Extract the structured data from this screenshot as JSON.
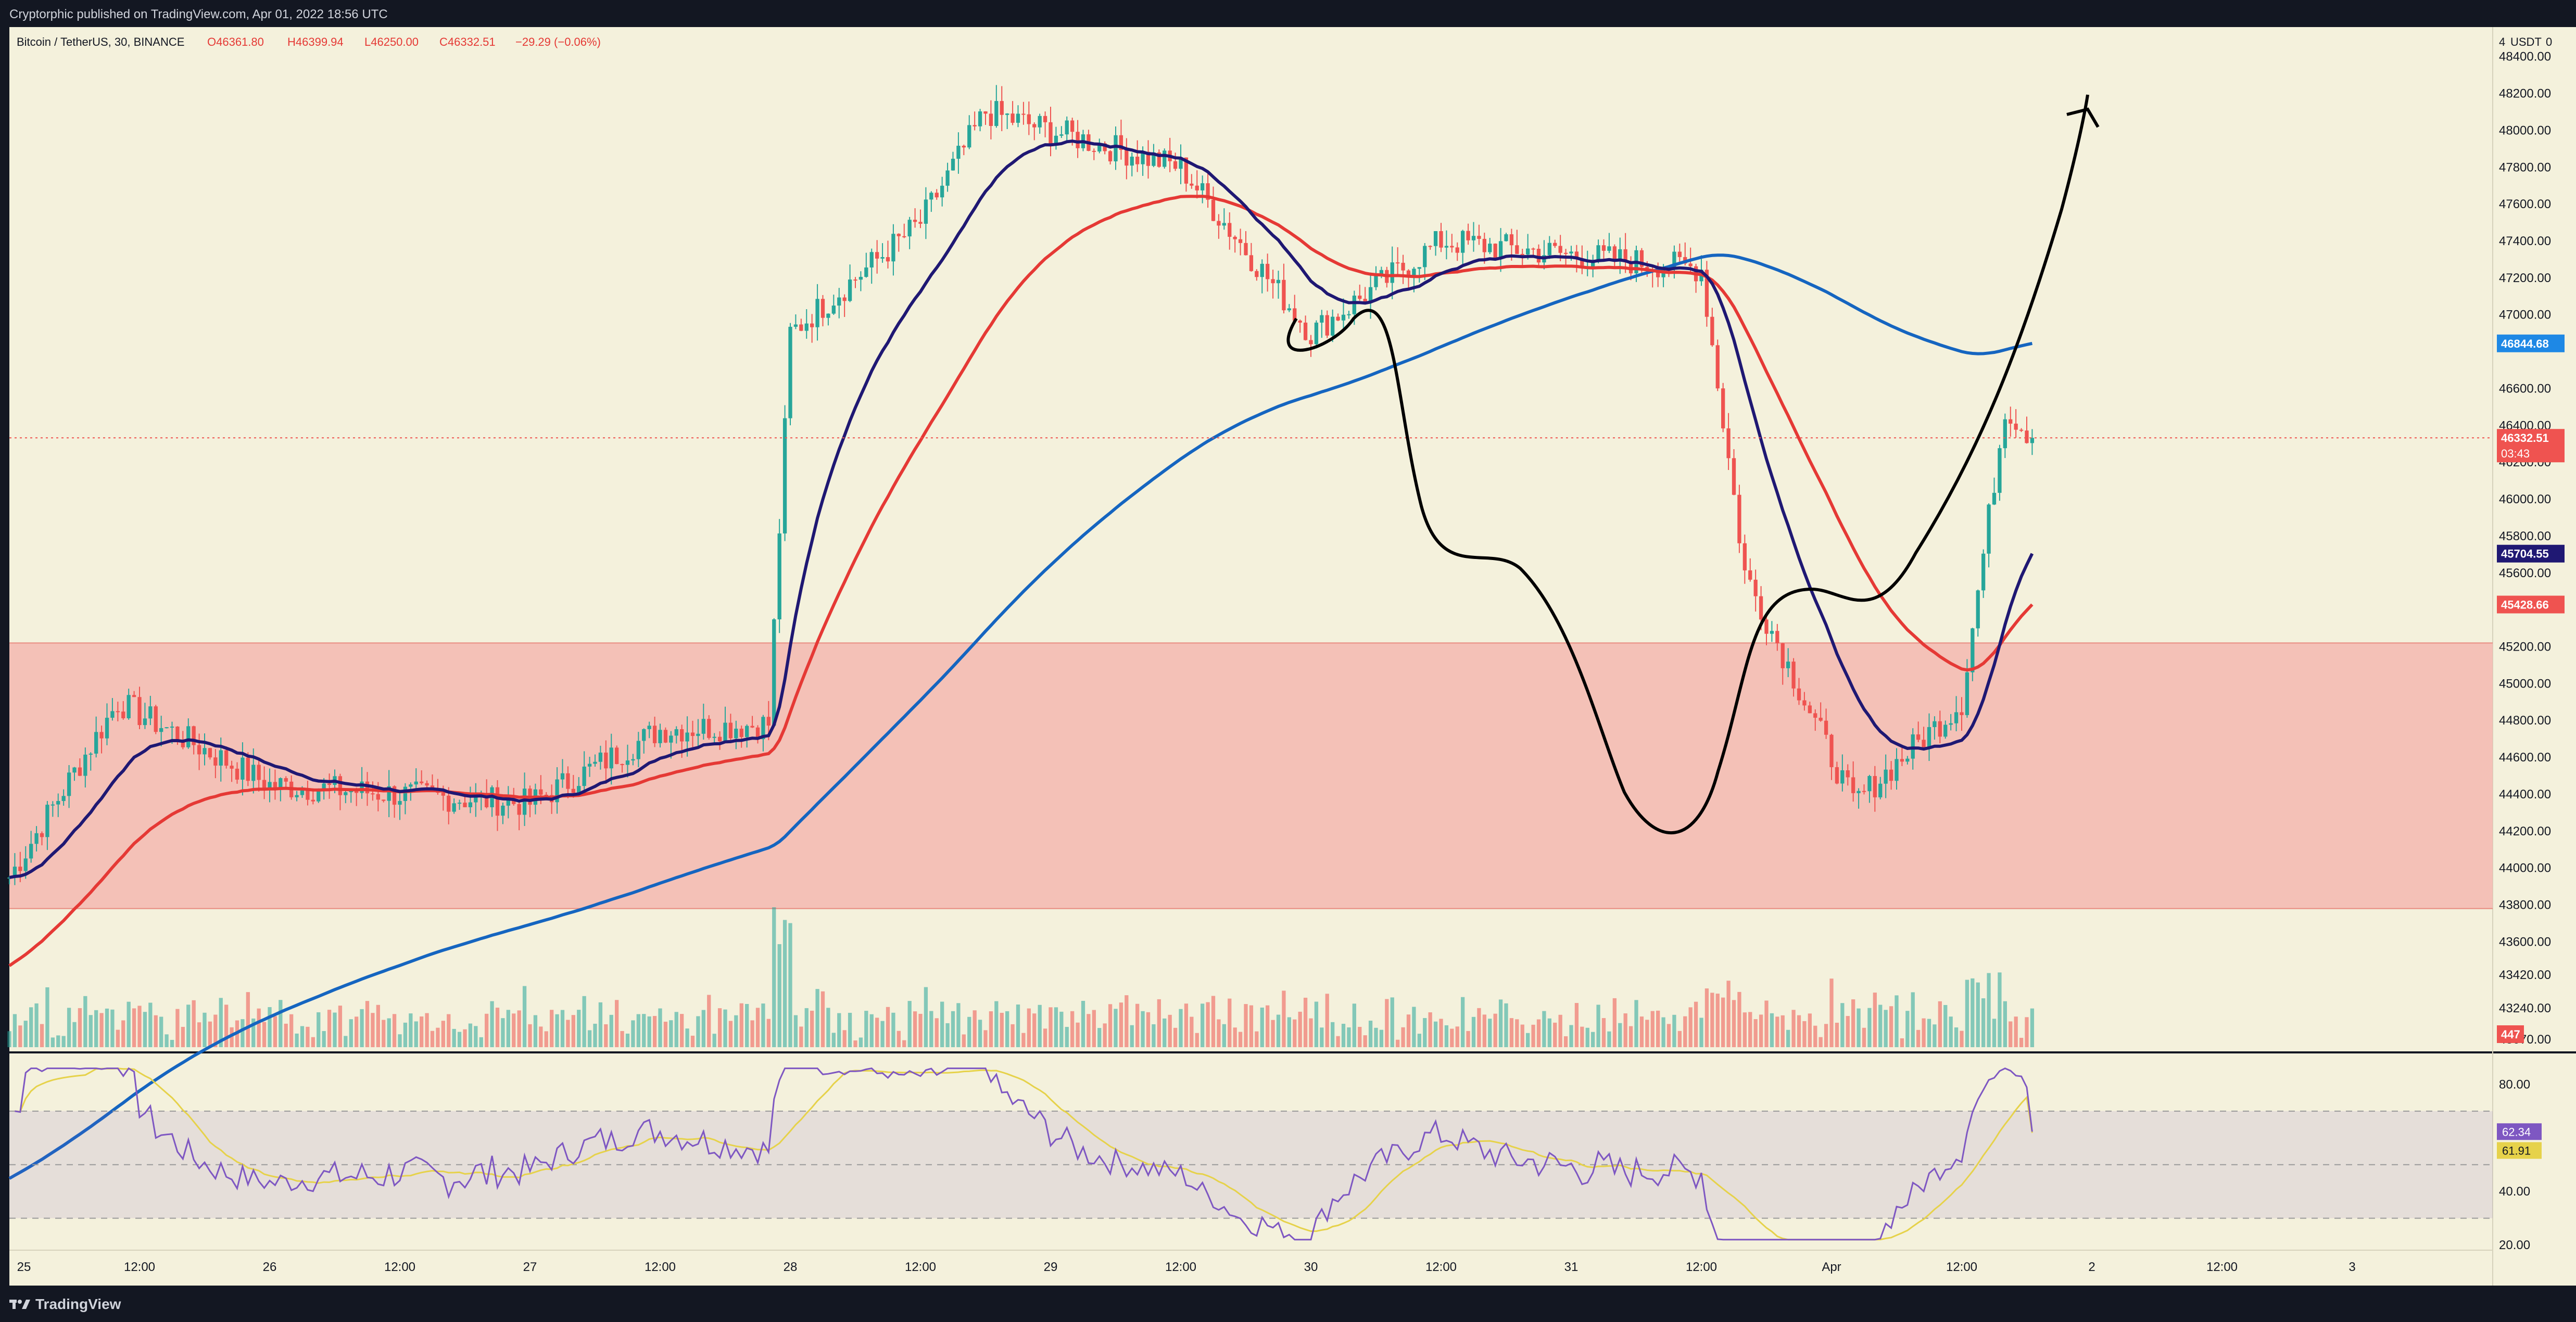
{
  "header": {
    "published": "Cryptorphic published on TradingView.com, Apr 01, 2022 18:56 UTC"
  },
  "footer": {
    "brand": "TradingView"
  },
  "colors": {
    "background": "#f4f1dc",
    "support_zone": "#f3b8b0",
    "up": "#26a69a",
    "down": "#ef5350",
    "ma_fast": "#1f1873",
    "ma_mid": "#e53935",
    "ma_slow": "#1565c0",
    "rsi": "#7e57c2",
    "rsi_ma": "#e6d24a"
  },
  "legend": {
    "symbol": "Bitcoin / TetherUS, 30, BINANCE",
    "open": "O46361.80",
    "high": "H46399.94",
    "low": "L46250.00",
    "close": "C46332.51",
    "change": "−29.29 (−0.06%)"
  },
  "price_axis": {
    "currency": "USDT",
    "labels": [
      "48400.00",
      "48200.00",
      "48000.00",
      "47800.00",
      "47600.00",
      "47400.00",
      "47200.00",
      "47000.00",
      "46600.00",
      "46400.00",
      "46200.00",
      "46000.00",
      "45800.00",
      "45600.00",
      "45200.00",
      "45000.00",
      "44800.00",
      "44600.00",
      "44400.00",
      "44200.00",
      "44000.00",
      "43800.00",
      "43600.00",
      "43420.00",
      "43240.00",
      "43070.00"
    ]
  },
  "price_tags": {
    "ma_slow": "46844.68",
    "last": "46332.51",
    "countdown": "03:43",
    "ma_fast": "45704.55",
    "ma_mid": "45428.66",
    "volume": "447"
  },
  "rsi_panel": {
    "levels": [
      "80.00",
      "40.00",
      "20.00"
    ],
    "rsi_value": "62.34",
    "rsi_ma_value": "61.91"
  },
  "time_axis": {
    "labels": [
      "25",
      "12:00",
      "26",
      "12:00",
      "27",
      "12:00",
      "28",
      "12:00",
      "29",
      "12:00",
      "30",
      "12:00",
      "31",
      "12:00",
      "Apr",
      "12:00",
      "2",
      "12:00",
      "3"
    ]
  },
  "chart_data": {
    "type": "candlestick",
    "timeframe": "30",
    "x_range": [
      "Mar 25 00:00",
      "Apr 01 18:30"
    ],
    "ylim": [
      43000,
      48560
    ],
    "support_zone": [
      43780,
      45220
    ],
    "last_price_line": 46332.51,
    "key_points": [
      {
        "t": "Mar 25 00:00",
        "close": 43950
      },
      {
        "t": "Mar 25 10:00",
        "close": 44900
      },
      {
        "t": "Mar 26 00:00",
        "close": 44450
      },
      {
        "t": "Mar 27 00:00",
        "close": 44350
      },
      {
        "t": "Mar 27 12:00",
        "close": 44750
      },
      {
        "t": "Mar 27 22:00",
        "close": 44780
      },
      {
        "t": "Mar 28 00:00",
        "close": 46900
      },
      {
        "t": "Mar 28 12:00",
        "close": 47500
      },
      {
        "t": "Mar 28 18:00",
        "close": 48100
      },
      {
        "t": "Mar 29 12:00",
        "close": 47800
      },
      {
        "t": "Mar 30 00:00",
        "close": 46900
      },
      {
        "t": "Mar 30 12:00",
        "close": 47400
      },
      {
        "t": "Mar 31 12:00",
        "close": 47250
      },
      {
        "t": "Mar 31 16:00",
        "close": 45600
      },
      {
        "t": "Apr 01 02:00",
        "close": 44350
      },
      {
        "t": "Apr 01 12:00",
        "close": 44900
      },
      {
        "t": "Apr 01 16:00",
        "close": 46500
      },
      {
        "t": "Apr 01 18:30",
        "close": 46332.51
      }
    ],
    "moving_averages": [
      {
        "color": "#1f1873",
        "current": 45704.55
      },
      {
        "color": "#e53935",
        "current": 45428.66
      },
      {
        "color": "#1565c0",
        "current": 46844.68
      }
    ],
    "volume": {
      "current": 447
    },
    "rsi": {
      "levels": [
        70,
        50,
        30
      ],
      "ylim": [
        20,
        90
      ],
      "current": 62.34,
      "ma_current": 61.91
    }
  }
}
